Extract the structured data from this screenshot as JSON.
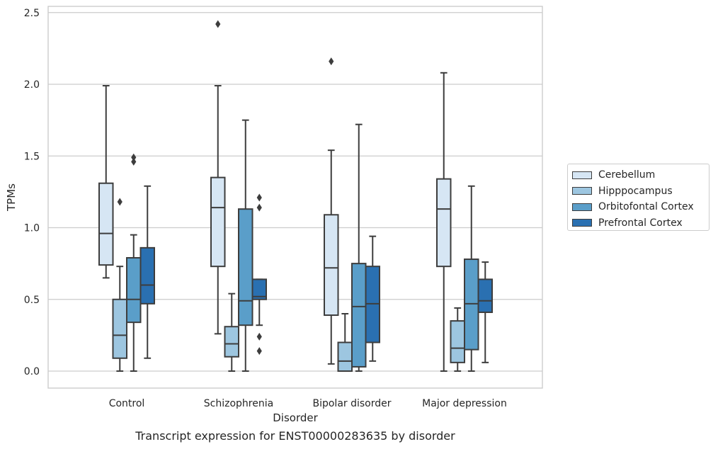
{
  "caption": "Transcript expression for ENST00000283635 by disorder",
  "chart_data": {
    "type": "box",
    "xlabel": "Disorder",
    "ylabel": "TPMs",
    "ylim": [
      -0.12,
      2.55
    ],
    "yticks": [
      "0.0",
      "0.5",
      "1.0",
      "1.5",
      "2.0",
      "2.5"
    ],
    "categories": [
      "Control",
      "Schizophrenia",
      "Bipolar disorder",
      "Major depression"
    ],
    "grid": true,
    "legend_position": "right, outside plot",
    "series": [
      {
        "name": "Cerebellum",
        "color": "#d6e6f4",
        "boxes": [
          {
            "whisker_low": 0.65,
            "q1": 0.74,
            "median": 0.96,
            "q3": 1.31,
            "whisker_high": 1.99,
            "outliers": []
          },
          {
            "whisker_low": 0.26,
            "q1": 0.73,
            "median": 1.14,
            "q3": 1.35,
            "whisker_high": 1.99,
            "outliers": [
              2.42
            ]
          },
          {
            "whisker_low": 0.05,
            "q1": 0.39,
            "median": 0.72,
            "q3": 1.09,
            "whisker_high": 1.54,
            "outliers": [
              2.16
            ]
          },
          {
            "whisker_low": 0.0,
            "q1": 0.73,
            "median": 1.13,
            "q3": 1.34,
            "whisker_high": 2.08,
            "outliers": []
          }
        ]
      },
      {
        "name": "Hipppocampus",
        "color": "#9dc6e0",
        "boxes": [
          {
            "whisker_low": 0.0,
            "q1": 0.09,
            "median": 0.25,
            "q3": 0.5,
            "whisker_high": 0.73,
            "outliers": [
              1.18
            ]
          },
          {
            "whisker_low": 0.0,
            "q1": 0.1,
            "median": 0.19,
            "q3": 0.31,
            "whisker_high": 0.54,
            "outliers": []
          },
          {
            "whisker_low": 0.0,
            "q1": 0.0,
            "median": 0.07,
            "q3": 0.2,
            "whisker_high": 0.4,
            "outliers": []
          },
          {
            "whisker_low": 0.0,
            "q1": 0.06,
            "median": 0.16,
            "q3": 0.35,
            "whisker_high": 0.44,
            "outliers": []
          }
        ]
      },
      {
        "name": "Orbitofontal Cortex",
        "color": "#5a9ec9",
        "boxes": [
          {
            "whisker_low": 0.0,
            "q1": 0.34,
            "median": 0.5,
            "q3": 0.79,
            "whisker_high": 0.95,
            "outliers": [
              1.46,
              1.49
            ]
          },
          {
            "whisker_low": 0.0,
            "q1": 0.32,
            "median": 0.49,
            "q3": 1.13,
            "whisker_high": 1.75,
            "outliers": []
          },
          {
            "whisker_low": 0.0,
            "q1": 0.03,
            "median": 0.45,
            "q3": 0.75,
            "whisker_high": 1.72,
            "outliers": []
          },
          {
            "whisker_low": 0.0,
            "q1": 0.15,
            "median": 0.47,
            "q3": 0.78,
            "whisker_high": 1.29,
            "outliers": []
          }
        ]
      },
      {
        "name": "Prefrontal Cortex",
        "color": "#2a70b1",
        "boxes": [
          {
            "whisker_low": 0.09,
            "q1": 0.47,
            "median": 0.6,
            "q3": 0.86,
            "whisker_high": 1.29,
            "outliers": []
          },
          {
            "whisker_low": 0.32,
            "q1": 0.5,
            "median": 0.52,
            "q3": 0.64,
            "whisker_high": 0.64,
            "outliers": [
              0.14,
              0.24,
              1.14,
              1.21
            ]
          },
          {
            "whisker_low": 0.07,
            "q1": 0.2,
            "median": 0.47,
            "q3": 0.73,
            "whisker_high": 0.94,
            "outliers": []
          },
          {
            "whisker_low": 0.06,
            "q1": 0.41,
            "median": 0.49,
            "q3": 0.64,
            "whisker_high": 0.76,
            "outliers": []
          }
        ]
      }
    ]
  }
}
